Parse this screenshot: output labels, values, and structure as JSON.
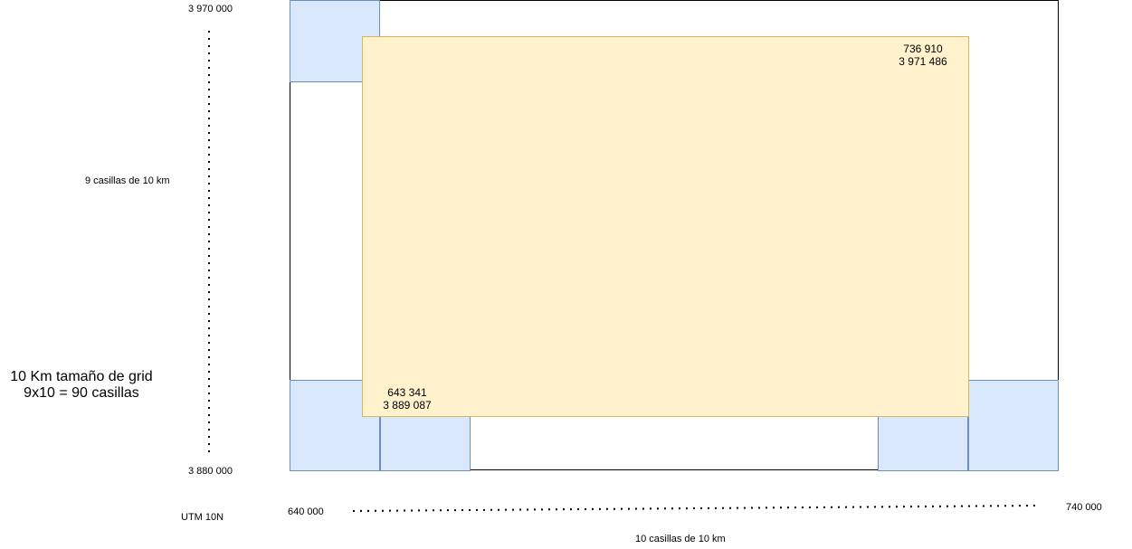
{
  "labels": {
    "north": "3 970 000",
    "south": "3 880 000",
    "west": "640 000",
    "east": "740 000",
    "zone": "UTM 10N",
    "rows_caption": "9 casillas de 10 km",
    "cols_caption": "10 casillas de 10 km",
    "grid_size": "10 Km tamaño de grid",
    "cell_count": "9x10 = 90 casillas"
  },
  "study_area": {
    "upper_right": {
      "easting": "736 910",
      "northing": "3 971 486"
    },
    "lower_left": {
      "easting": "643 341",
      "northing": "3 889 087"
    }
  },
  "colors": {
    "cell_fill": "#dae8fc",
    "cell_stroke": "#6c8ebf",
    "area_fill": "#fff2cc",
    "area_stroke": "#d6b656",
    "frame_stroke": "#000000"
  }
}
